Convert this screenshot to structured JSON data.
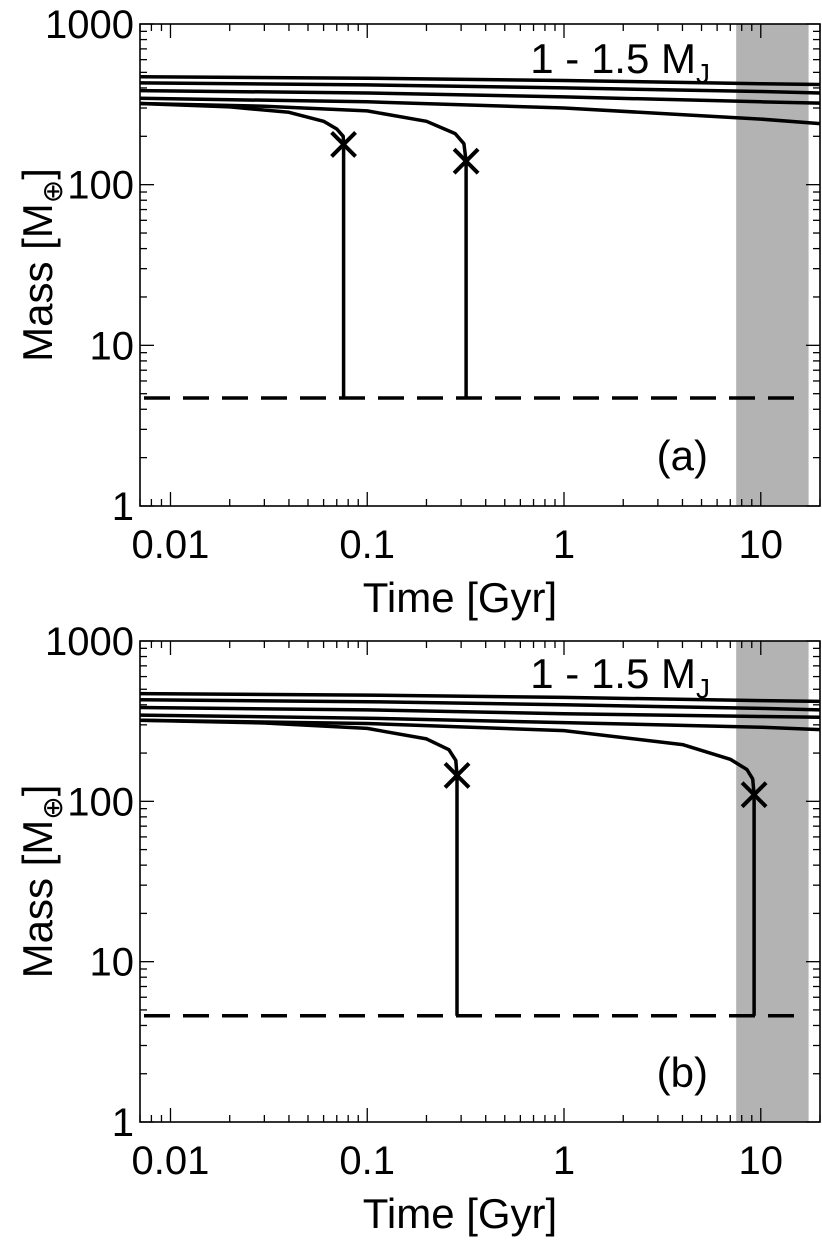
{
  "chart_data": [
    {
      "panel_label": "(a)",
      "type": "line",
      "xscale": "log",
      "yscale": "log",
      "xlim": [
        0.007,
        20
      ],
      "ylim": [
        1,
        1000
      ],
      "xlabel": "Time [Gyr]",
      "ylabel_main": "Mass [M",
      "ylabel_sub": "⊕",
      "ylabel_close": "]",
      "xticks": [
        0.01,
        0.1,
        1,
        10
      ],
      "xtick_labels": [
        "0.01",
        "0.1",
        "1",
        "10"
      ],
      "yticks": [
        1,
        10,
        100,
        1000
      ],
      "ytick_labels": [
        "1",
        "10",
        "100",
        "1000"
      ],
      "annotation_main": "1 - 1.5 M",
      "annotation_sub": "J",
      "shaded_region": {
        "x": [
          7.5,
          17.5
        ],
        "color": "#b3b3b3"
      },
      "threshold_line": {
        "y": 4.7,
        "style": "dashed"
      },
      "series": [
        {
          "x": [
            0.007,
            0.1,
            1,
            10,
            20
          ],
          "y": [
            470,
            460,
            445,
            425,
            420
          ]
        },
        {
          "x": [
            0.007,
            0.1,
            1,
            10,
            20
          ],
          "y": [
            430,
            418,
            400,
            380,
            372
          ]
        },
        {
          "x": [
            0.007,
            0.1,
            1,
            10,
            20
          ],
          "y": [
            385,
            372,
            352,
            328,
            322
          ]
        },
        {
          "x": [
            0.007,
            0.1,
            1,
            10,
            20
          ],
          "y": [
            345,
            328,
            300,
            256,
            240
          ]
        },
        {
          "x": [
            0.007,
            0.02,
            0.04,
            0.06,
            0.07,
            0.0755,
            0.0758,
            0.0758
          ],
          "y": [
            320,
            305,
            282,
            248,
            222,
            200,
            178,
            4.7
          ]
        },
        {
          "x": [
            0.007,
            0.03,
            0.1,
            0.2,
            0.28,
            0.31,
            0.318,
            0.318
          ],
          "y": [
            320,
            308,
            288,
            248,
            208,
            180,
            140,
            4.7
          ]
        }
      ],
      "markers": [
        {
          "x": 0.0758,
          "y": 178,
          "symbol": "x"
        },
        {
          "x": 0.318,
          "y": 140,
          "symbol": "x"
        }
      ]
    },
    {
      "panel_label": "(b)",
      "type": "line",
      "xscale": "log",
      "yscale": "log",
      "xlim": [
        0.007,
        20
      ],
      "ylim": [
        1,
        1000
      ],
      "xlabel": "Time [Gyr]",
      "ylabel_main": "Mass [M",
      "ylabel_sub": "⊕",
      "ylabel_close": "]",
      "xticks": [
        0.01,
        0.1,
        1,
        10
      ],
      "xtick_labels": [
        "0.01",
        "0.1",
        "1",
        "10"
      ],
      "yticks": [
        1,
        10,
        100,
        1000
      ],
      "ytick_labels": [
        "1",
        "10",
        "100",
        "1000"
      ],
      "annotation_main": "1 - 1.5 M",
      "annotation_sub": "J",
      "shaded_region": {
        "x": [
          7.5,
          17.5
        ],
        "color": "#b3b3b3"
      },
      "threshold_line": {
        "y": 4.6,
        "style": "dashed"
      },
      "series": [
        {
          "x": [
            0.007,
            0.1,
            1,
            10,
            20
          ],
          "y": [
            470,
            460,
            445,
            425,
            420
          ]
        },
        {
          "x": [
            0.007,
            0.1,
            1,
            10,
            20
          ],
          "y": [
            430,
            418,
            400,
            380,
            372
          ]
        },
        {
          "x": [
            0.007,
            0.1,
            1,
            10,
            20
          ],
          "y": [
            385,
            372,
            352,
            338,
            335
          ]
        },
        {
          "x": [
            0.007,
            0.1,
            1,
            10,
            20
          ],
          "y": [
            345,
            330,
            310,
            290,
            280
          ]
        },
        {
          "x": [
            0.007,
            0.03,
            0.1,
            0.2,
            0.26,
            0.282,
            0.286,
            0.286
          ],
          "y": [
            320,
            308,
            285,
            245,
            210,
            180,
            145,
            4.6
          ]
        },
        {
          "x": [
            0.007,
            0.1,
            1,
            4,
            7,
            8.5,
            9.1,
            9.25,
            9.25
          ],
          "y": [
            320,
            306,
            276,
            226,
            183,
            158,
            138,
            110,
            4.6
          ]
        }
      ],
      "markers": [
        {
          "x": 0.286,
          "y": 145,
          "symbol": "x"
        },
        {
          "x": 9.25,
          "y": 110,
          "symbol": "x"
        }
      ]
    }
  ]
}
